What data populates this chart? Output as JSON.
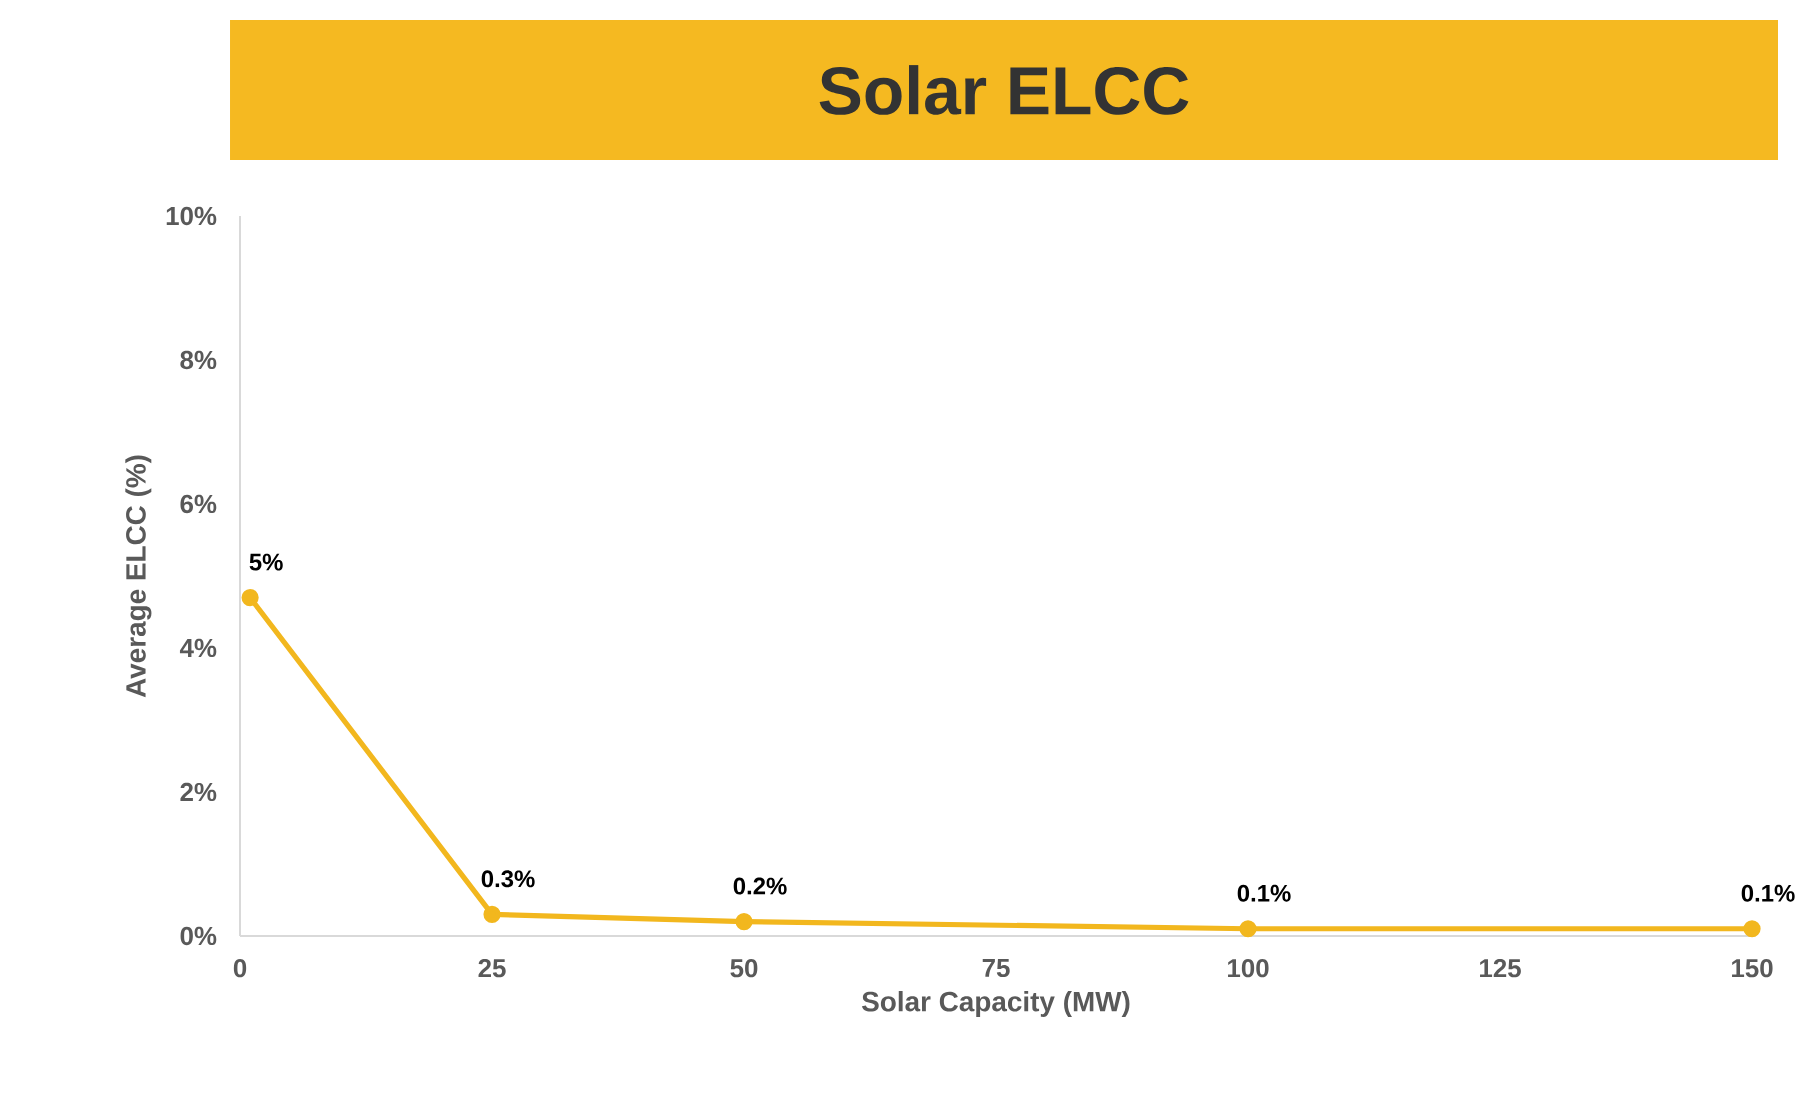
{
  "chart_data": {
    "type": "line",
    "title": "Solar ELCC",
    "xlabel": "Solar Capacity (MW)",
    "ylabel": "Average ELCC (%)",
    "x": [
      1,
      25,
      50,
      100,
      150
    ],
    "series": [
      {
        "color": "#f2b71e",
        "values": [
          4.7,
          0.3,
          0.2,
          0.1,
          0.1
        ],
        "value_labels": [
          "5%",
          "0.3%",
          "0.2%",
          "0.1%",
          "0.1%"
        ]
      }
    ],
    "xlim": [
      0,
      150
    ],
    "xticks": [
      0,
      25,
      50,
      75,
      100,
      125,
      150
    ],
    "ylim": [
      0,
      10
    ],
    "yticks": [
      {
        "value": 0,
        "label": "0%"
      },
      {
        "value": 2,
        "label": "2%"
      },
      {
        "value": 4,
        "label": "4%"
      },
      {
        "value": 6,
        "label": "6%"
      },
      {
        "value": 8,
        "label": "8%"
      },
      {
        "value": 10,
        "label": "10%"
      }
    ],
    "grid": false,
    "marker": "circle",
    "line_style": "solid"
  }
}
